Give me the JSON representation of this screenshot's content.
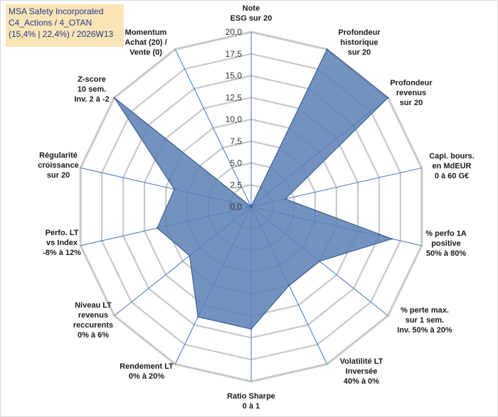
{
  "header": {
    "line1": "MSA Safety Incorporated",
    "line2": "C4_Actions / 4_OTAN",
    "line3": "(15,4% | 22,4%) / 2026W13"
  },
  "chart_data": {
    "type": "radar",
    "title": "MSA Safety Incorporated",
    "rmax": 20,
    "ticks": [
      "0,0",
      "2,5",
      "5,0",
      "7,5",
      "10,0",
      "12,5",
      "15,0",
      "17,5",
      "20,0"
    ],
    "axes": [
      [
        "Note",
        "ESG sur 20"
      ],
      [
        "Profondeur",
        "historique",
        "sur 20"
      ],
      [
        "Profondeur",
        "revenus",
        "sur 20"
      ],
      [
        "Capi. bours.",
        "en MdEUR",
        "0 à 60 G€"
      ],
      [
        "% perfo 1A",
        "positive",
        "50% à 80%"
      ],
      [
        "% perte max.",
        "sur 1 sem.",
        "Inv. 50% à 20%"
      ],
      [
        "Volatilité LT",
        "Inversée",
        "40% à 0%"
      ],
      [
        "Ratio Sharpe",
        "0 à 1"
      ],
      [
        "Rendement LT",
        "0% à 20%"
      ],
      [
        "Niveau LT",
        "revenus",
        "reccurents",
        "0% à 6%"
      ],
      [
        "Perfo. LT",
        "vs Index",
        "-8% à 12%"
      ],
      [
        "Régularité",
        "croissance",
        "sur 20"
      ],
      [
        "Z-score",
        "10 sem.",
        "Inv. 2 à -2"
      ],
      [
        "Momentum",
        "Achat (20) /",
        "Vente (0)"
      ]
    ],
    "series": [
      {
        "name": "MSA Safety Incorporated",
        "values": [
          0,
          20,
          20,
          4,
          16.5,
          10,
          10,
          14,
          14,
          9,
          11,
          9,
          20,
          0
        ]
      }
    ],
    "colors": {
      "fill": "#5b7fb5",
      "stroke": "#3d5f93",
      "grid": "#c8c8c8",
      "spoke": "#4472c4"
    }
  }
}
